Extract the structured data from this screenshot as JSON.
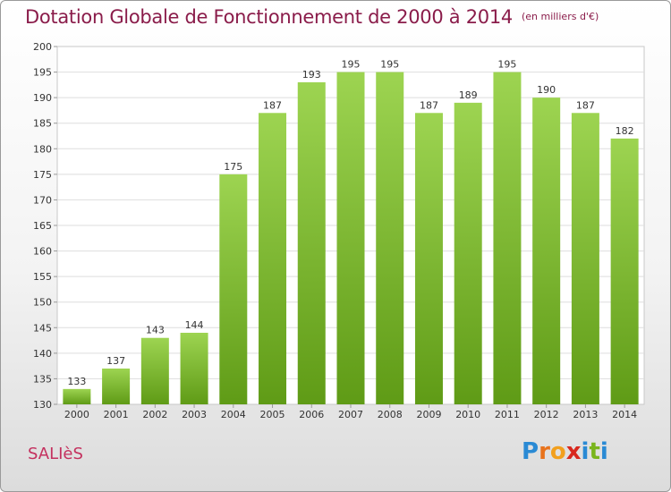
{
  "header": {
    "title": "Dotation Globale de Fonctionnement de 2000 à 2014",
    "unit": "(en milliers d'€)"
  },
  "footer": {
    "town": "SALIèS",
    "logo_letters": [
      "P",
      "r",
      "o",
      "x",
      "i",
      "t",
      "i"
    ],
    "logo_colors": [
      "#2a8ad4",
      "#e8731c",
      "#f2a01e",
      "#d8281e",
      "#2a8ad4",
      "#7ab51d",
      "#2a8ad4"
    ]
  },
  "chart_data": {
    "type": "bar",
    "title": "Dotation Globale de Fonctionnement de 2000 à 2014",
    "subtitle": "(en milliers d'€)",
    "xlabel": "",
    "ylabel": "",
    "categories": [
      "2000",
      "2001",
      "2002",
      "2003",
      "2004",
      "2005",
      "2006",
      "2007",
      "2008",
      "2009",
      "2010",
      "2011",
      "2012",
      "2013",
      "2014"
    ],
    "values": [
      133,
      137,
      143,
      144,
      175,
      187,
      193,
      195,
      195,
      187,
      189,
      195,
      190,
      187,
      182
    ],
    "ylim": [
      130,
      200
    ],
    "yticks": [
      130,
      135,
      140,
      145,
      150,
      155,
      160,
      165,
      170,
      175,
      180,
      185,
      190,
      195,
      200
    ],
    "grid": true,
    "bar_color_top": "#9dd451",
    "bar_color_bottom": "#5f9b16"
  }
}
